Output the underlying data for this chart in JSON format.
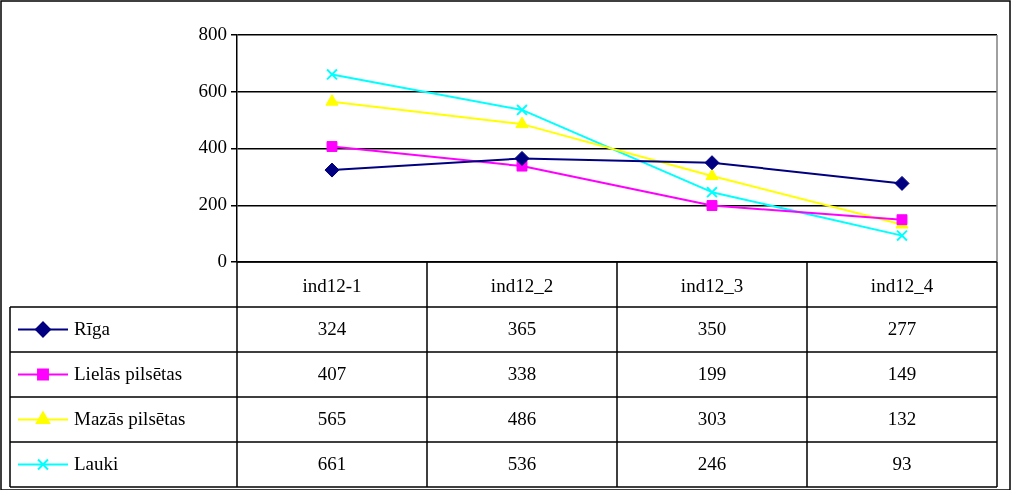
{
  "chart_data": {
    "type": "line",
    "categories": [
      "ind12-1",
      "ind12_2",
      "ind12_3",
      "ind12_4"
    ],
    "series": [
      {
        "name": "Rīga",
        "color": "#000080",
        "marker": "diamond",
        "values": [
          324,
          365,
          350,
          277
        ]
      },
      {
        "name": "Lielās pilsētas",
        "color": "#ff00ff",
        "marker": "square",
        "values": [
          407,
          338,
          199,
          149
        ]
      },
      {
        "name": "Mazās pilsētas",
        "color": "#ffff00",
        "marker": "triangle",
        "values": [
          565,
          486,
          303,
          132
        ]
      },
      {
        "name": "Lauki",
        "color": "#00ffff",
        "marker": "cross",
        "values": [
          661,
          536,
          246,
          93
        ]
      }
    ],
    "ylim": [
      0,
      800
    ],
    "yticks": [
      0,
      200,
      400,
      600,
      800
    ],
    "grid": "y",
    "legend": "bottom left",
    "data_labels": true
  }
}
